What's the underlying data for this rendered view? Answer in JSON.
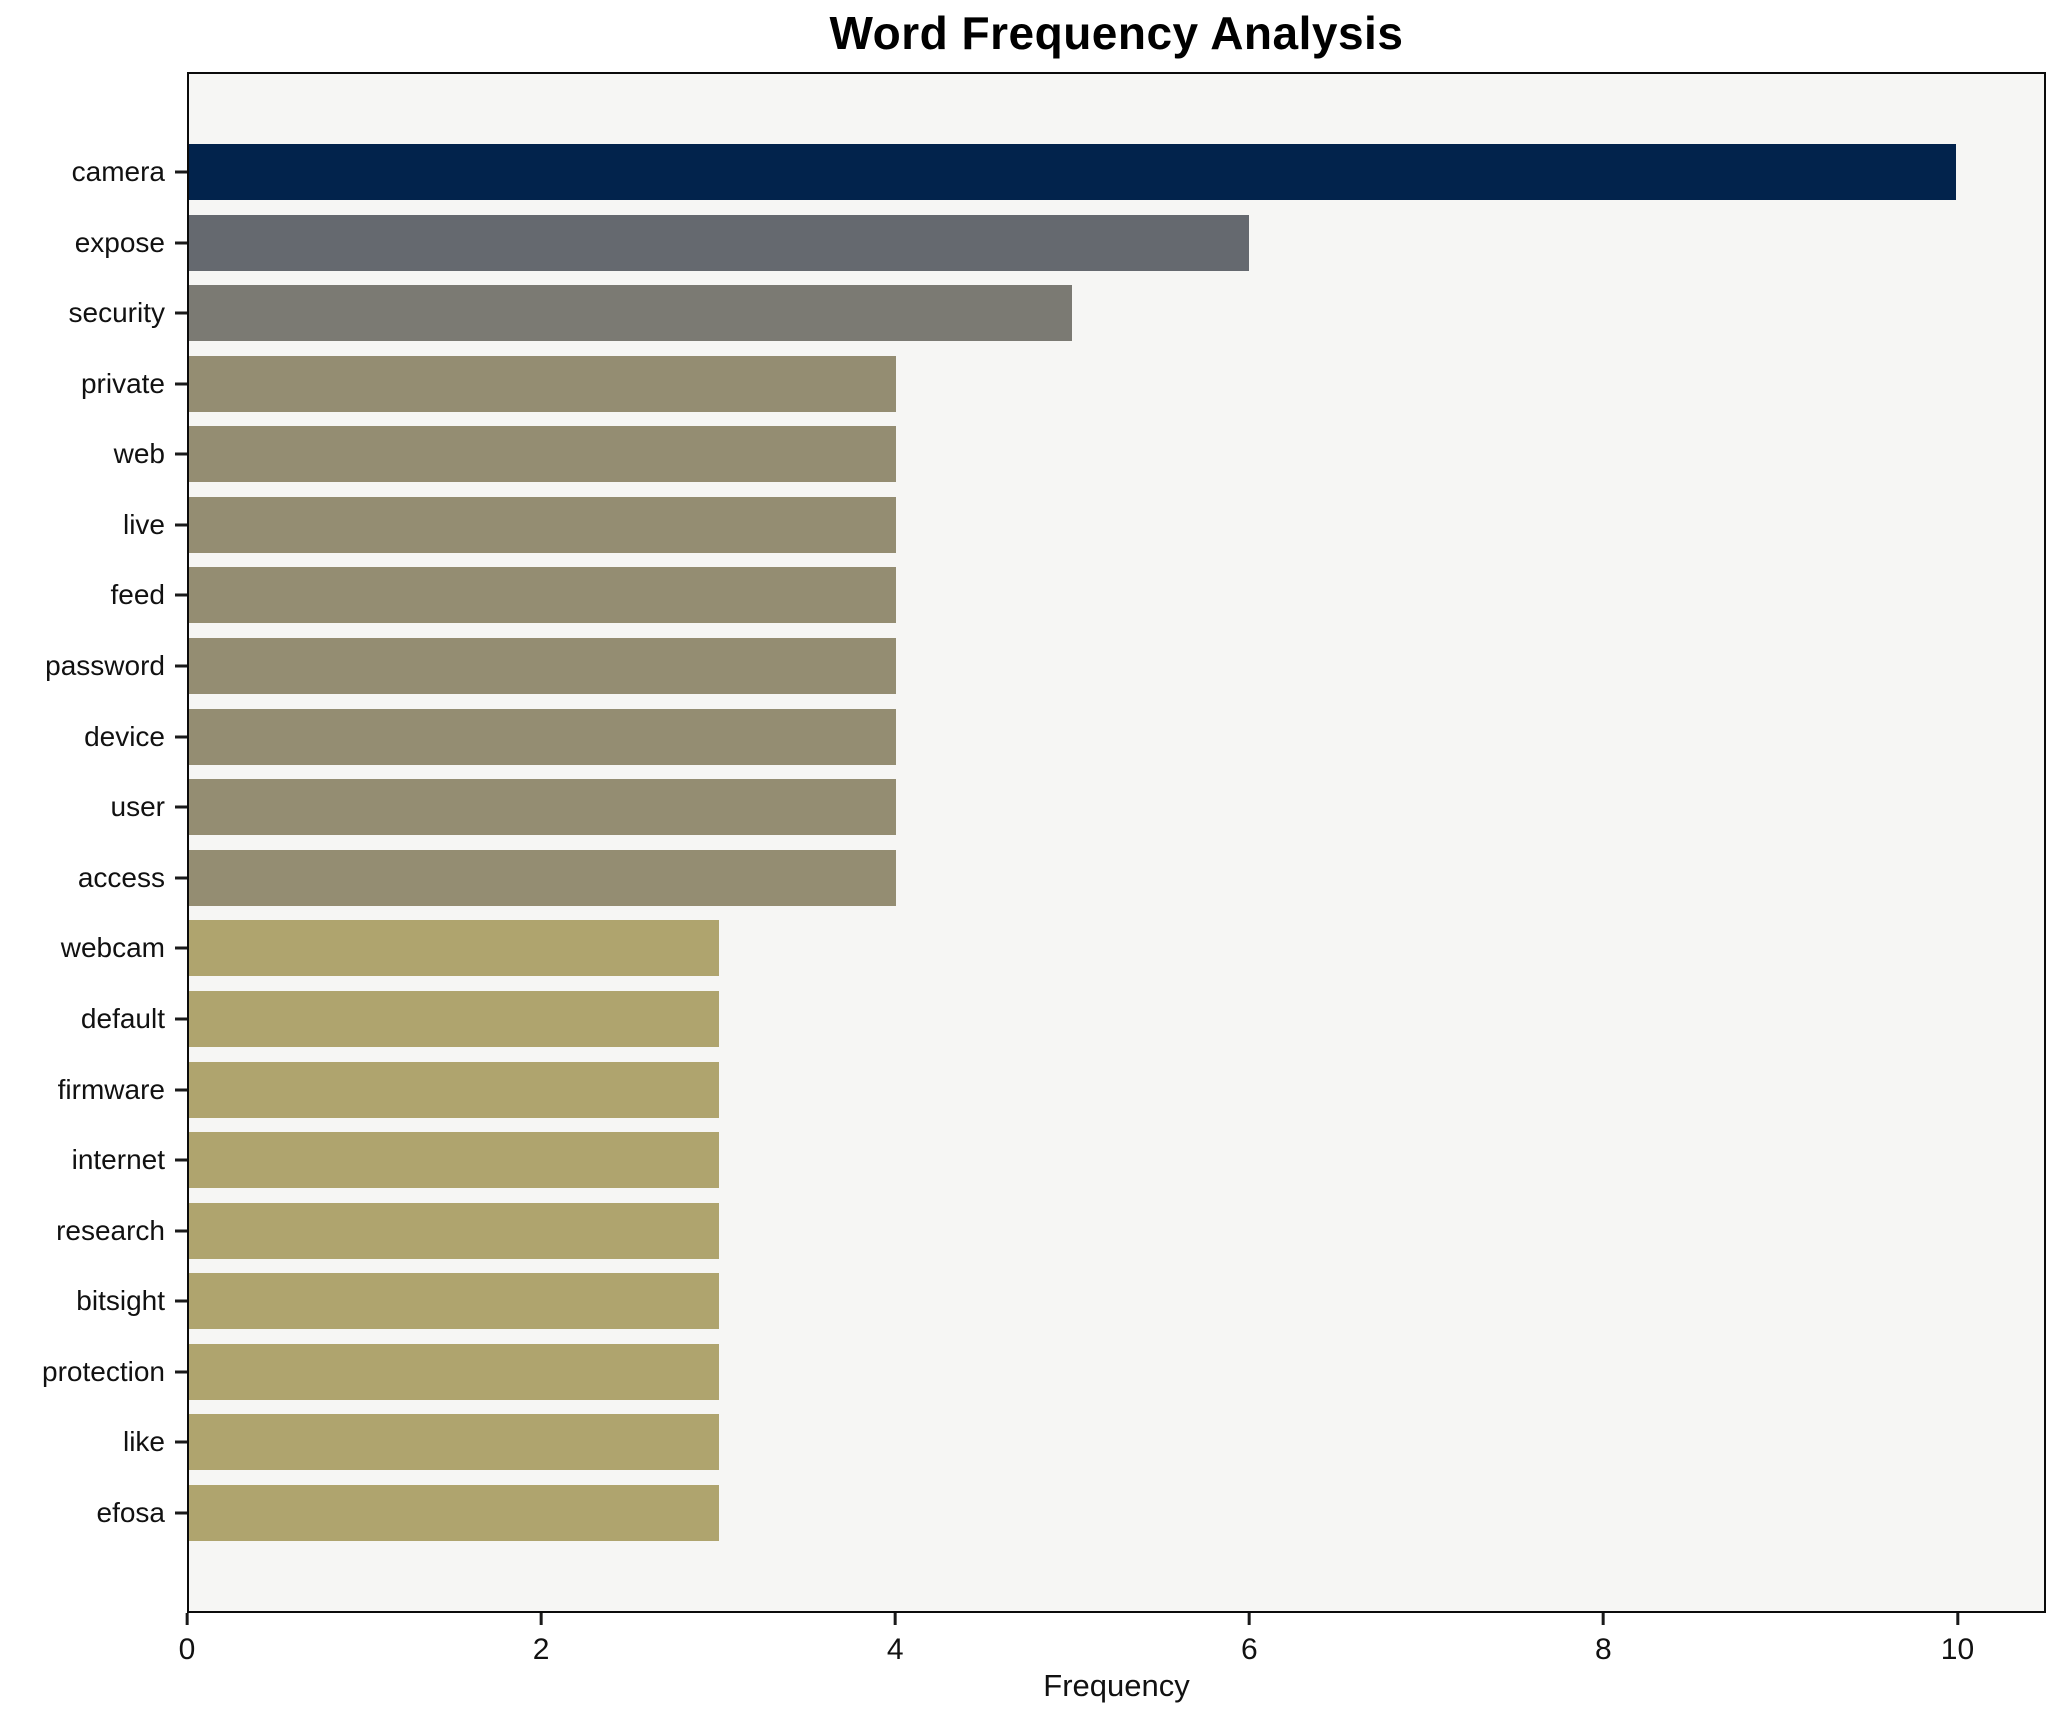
{
  "title": "Word Frequency Analysis",
  "colors": {
    "plot_background": "#f6f6f4",
    "figure_background": "#ffffff",
    "spine": "#0b0b0b",
    "text": "#111111"
  },
  "chart_data": {
    "type": "bar",
    "orientation": "horizontal",
    "title": "Word Frequency Analysis",
    "xlabel": "Frequency",
    "ylabel": "",
    "categories": [
      "camera",
      "expose",
      "security",
      "private",
      "web",
      "live",
      "feed",
      "password",
      "device",
      "user",
      "access",
      "webcam",
      "default",
      "firmware",
      "internet",
      "research",
      "bitsight",
      "protection",
      "like",
      "efosa"
    ],
    "values": [
      10,
      6,
      5,
      4,
      4,
      4,
      4,
      4,
      4,
      4,
      4,
      3,
      3,
      3,
      3,
      3,
      3,
      3,
      3,
      3
    ],
    "bar_colors": [
      "#02234c",
      "#65696f",
      "#7b7a73",
      "#948d72",
      "#948d72",
      "#948d72",
      "#948d72",
      "#948d72",
      "#948d72",
      "#948d72",
      "#948d72",
      "#afa46e",
      "#afa46e",
      "#afa46e",
      "#afa46e",
      "#afa46e",
      "#afa46e",
      "#afa46e",
      "#afa46e",
      "#afa46e"
    ],
    "xlim": [
      0,
      10.5
    ],
    "xticks": [
      0,
      2,
      4,
      6,
      8,
      10
    ],
    "grid": false,
    "legend": false
  }
}
